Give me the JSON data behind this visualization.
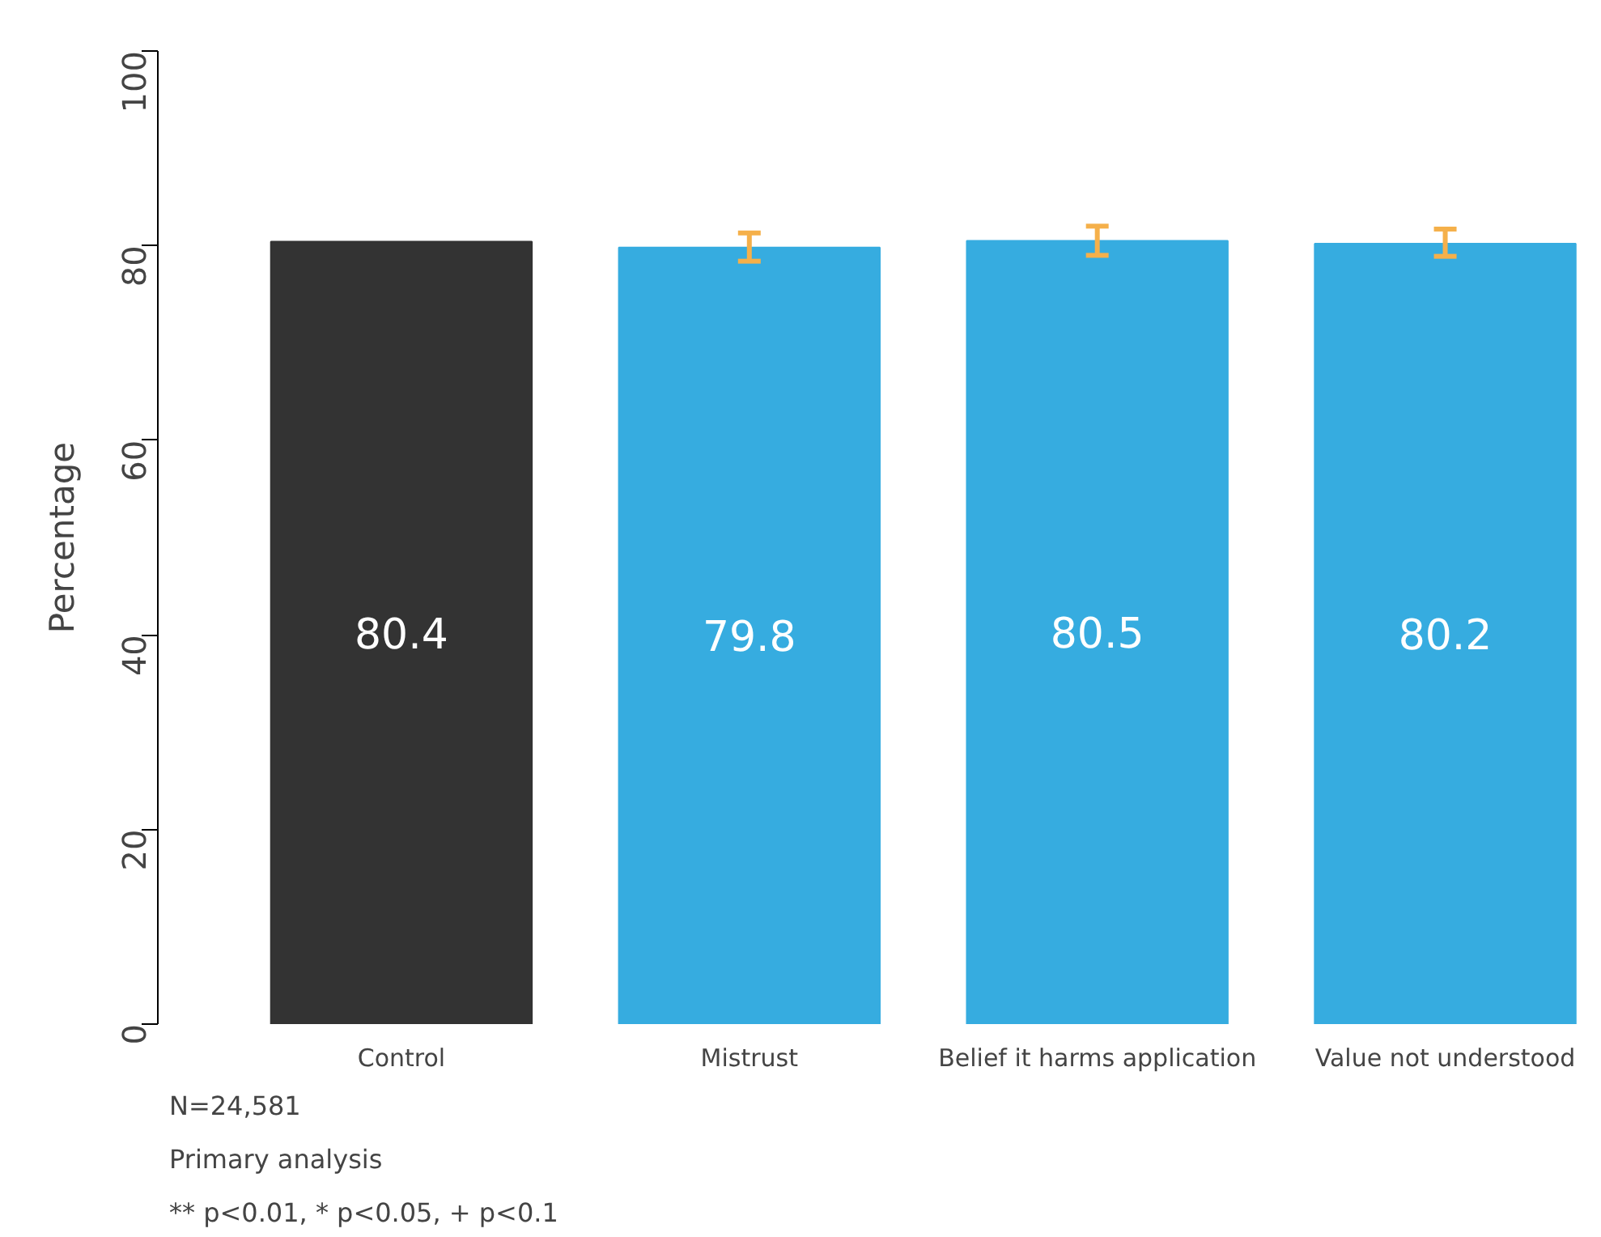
{
  "chart_data": {
    "type": "bar",
    "ylabel": "Percentage",
    "categories": [
      "Control",
      "Mistrust",
      "Belief it harms application",
      "Value not understood"
    ],
    "values": [
      80.4,
      79.8,
      80.5,
      80.2
    ],
    "colors": [
      "#333333",
      "#36ace0",
      "#36ace0",
      "#36ace0"
    ],
    "errors": [
      null,
      [
        78.4,
        81.3
      ],
      [
        79.0,
        82.0
      ],
      [
        78.9,
        81.7
      ]
    ],
    "ylim": [
      0,
      100
    ],
    "yticks": [
      0,
      20,
      40,
      60,
      80,
      100
    ],
    "data_labels": true,
    "grid": false,
    "annotations": [
      "N=24,581",
      "Primary analysis",
      "** p<0.01, * p<0.05, + p<0.1"
    ]
  }
}
